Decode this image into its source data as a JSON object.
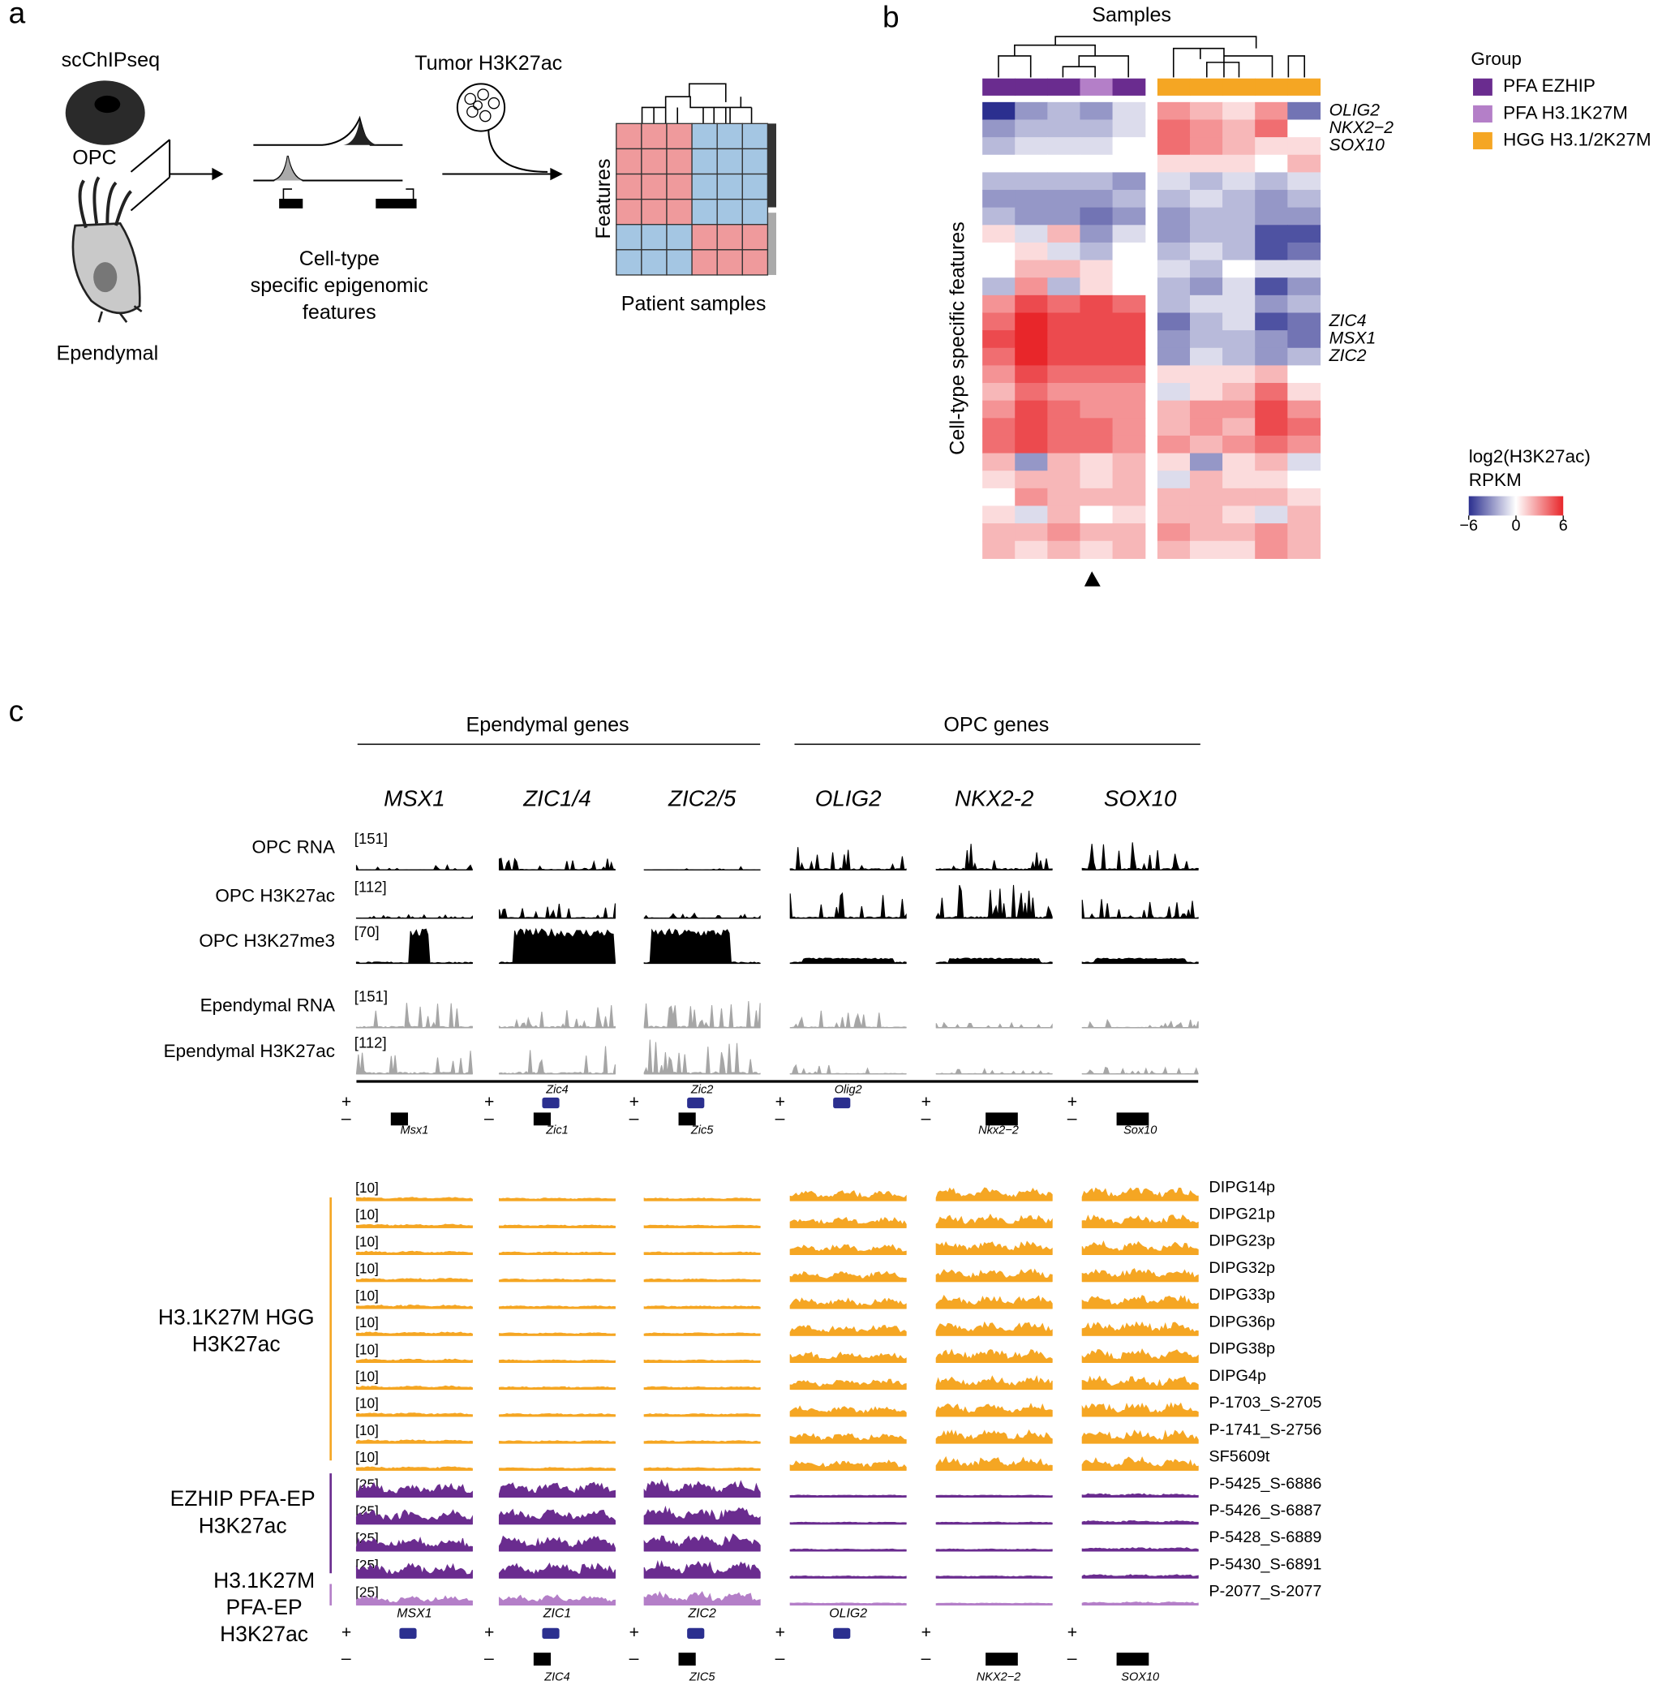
{
  "panel_a": {
    "label": "a",
    "method": "scChIPseq",
    "opc": "OPC",
    "ependymal": "Ependymal",
    "caption": [
      "Cell-type",
      "specific epigenomic",
      "features"
    ],
    "tumor": "Tumor H3K27ac",
    "features_axis": "Features",
    "samples_axis": "Patient samples"
  },
  "panel_b": {
    "label": "b",
    "title": "Samples",
    "y_label": "Cell-type specific features",
    "legend_title": "Group",
    "groups": [
      {
        "name": "PFA EZHIP",
        "color": "#6a2c8f"
      },
      {
        "name": "PFA H3.1K27M",
        "color": "#b47fc8"
      },
      {
        "name": "HGG H3.1/2K27M",
        "color": "#f5a623"
      }
    ],
    "column_groups": [
      "PFA EZHIP",
      "PFA EZHIP",
      "PFA EZHIP",
      "PFA H3.1K27M",
      "PFA EZHIP",
      "HGG H3.1/2K27M",
      "HGG H3.1/2K27M",
      "HGG H3.1/2K27M",
      "HGG H3.1/2K27M",
      "HGG H3.1/2K27M"
    ],
    "row_labels": [
      "OLIG2",
      "NKX2−2",
      "SOX10",
      null,
      null,
      null,
      null,
      null,
      null,
      null,
      null,
      null,
      "ZIC4",
      "MSX1",
      "ZIC2",
      null,
      null,
      null,
      null,
      null,
      null,
      null,
      null,
      null,
      null,
      null
    ],
    "values": [
      [
        -6,
        -3,
        -2,
        -3,
        -1,
        3,
        2,
        1,
        3,
        -4
      ],
      [
        -3,
        -2,
        -2,
        -2,
        -1,
        4,
        3,
        2,
        4,
        0
      ],
      [
        -2,
        -1,
        -1,
        -1,
        0,
        4,
        3,
        2,
        1,
        1
      ],
      [
        0,
        0,
        0,
        0,
        0,
        1,
        1,
        1,
        0,
        2
      ],
      [
        -2,
        -2,
        -2,
        -2,
        -3,
        -1,
        -2,
        -1,
        -2,
        -1
      ],
      [
        -3,
        -3,
        -3,
        -3,
        -2,
        -2,
        -1,
        -2,
        -3,
        -2
      ],
      [
        -2,
        -3,
        -3,
        -4,
        -3,
        -3,
        -2,
        -2,
        -3,
        -3
      ],
      [
        1,
        -1,
        2,
        -3,
        -1,
        -3,
        -2,
        -2,
        -5,
        -5
      ],
      [
        0,
        1,
        -1,
        -2,
        0,
        -2,
        -1,
        -2,
        -5,
        -4
      ],
      [
        0,
        2,
        2,
        1,
        0,
        -1,
        -2,
        0,
        -1,
        -1
      ],
      [
        -2,
        3,
        -2,
        1,
        0,
        -2,
        -3,
        -1,
        -5,
        -3
      ],
      [
        3,
        5,
        4,
        5,
        4,
        -2,
        -1,
        -1,
        -3,
        -2
      ],
      [
        4,
        6,
        5,
        5,
        5,
        -4,
        -2,
        -1,
        -5,
        -4
      ],
      [
        5,
        6,
        5,
        5,
        5,
        -3,
        -2,
        -2,
        -3,
        -4
      ],
      [
        4,
        6,
        5,
        5,
        5,
        -3,
        -1,
        -2,
        -3,
        -2
      ],
      [
        3,
        5,
        4,
        4,
        4,
        1,
        1,
        1,
        2,
        0
      ],
      [
        2,
        4,
        3,
        3,
        3,
        -1,
        1,
        2,
        4,
        1
      ],
      [
        3,
        5,
        4,
        3,
        3,
        2,
        3,
        3,
        5,
        3
      ],
      [
        4,
        5,
        4,
        4,
        3,
        2,
        3,
        2,
        5,
        4
      ],
      [
        4,
        5,
        4,
        4,
        3,
        3,
        2,
        3,
        4,
        3
      ],
      [
        2,
        -3,
        2,
        1,
        2,
        1,
        -3,
        1,
        2,
        -1
      ],
      [
        1,
        2,
        2,
        1,
        2,
        -1,
        2,
        1,
        1,
        0
      ],
      [
        0,
        3,
        2,
        2,
        2,
        2,
        2,
        2,
        2,
        1
      ],
      [
        1,
        -1,
        2,
        0,
        1,
        2,
        2,
        1,
        -1,
        2
      ],
      [
        2,
        2,
        3,
        2,
        2,
        3,
        2,
        2,
        3,
        2
      ],
      [
        2,
        1,
        2,
        1,
        2,
        2,
        1,
        1,
        3,
        2
      ]
    ],
    "colorbar": {
      "title": [
        "log2(H3K27ac)",
        "RPKM"
      ],
      "lim": [
        -6,
        6
      ],
      "ticks": [
        {
          "value": -6,
          "label": "−6"
        },
        0,
        6
      ],
      "colors": [
        "#2b2f8f",
        "#ffffff",
        "#e8262a"
      ]
    }
  },
  "panel_c": {
    "label": "c",
    "strand_plus": "+",
    "strand_minus": "–",
    "gene_groups": [
      {
        "name": "Ependymal genes",
        "genes": [
          "MSX1",
          "ZIC1/4",
          "ZIC2/5"
        ]
      },
      {
        "name": "OPC genes",
        "genes": [
          "OLIG2",
          "NKX2-2",
          "SOX10"
        ]
      }
    ],
    "reference_tracks": [
      {
        "name": "OPC RNA",
        "scale": "[151]",
        "color": "#000000"
      },
      {
        "name": "OPC H3K27ac",
        "scale": "[112]",
        "color": "#000000"
      },
      {
        "name": "OPC H3K27me3",
        "scale": "[70]",
        "color": "#000000"
      },
      {
        "name": "Ependymal RNA",
        "scale": "[151]",
        "color": "#a6a6a6"
      },
      {
        "name": "Ependymal H3K27ac",
        "scale": "[112]",
        "color": "#a6a6a6"
      }
    ],
    "reference_annotation": [
      {
        "plus": null,
        "minus": "Msx1"
      },
      {
        "plus": "Zic4",
        "minus": "Zic1"
      },
      {
        "plus": "Zic2",
        "minus": "Zic5"
      },
      {
        "plus": "Olig2",
        "minus": null
      },
      {
        "plus": null,
        "minus": "Nkx2−2"
      },
      {
        "plus": null,
        "minus": "Sox10"
      }
    ],
    "sample_groups": [
      {
        "label": [
          "H3.1K27M HGG",
          "H3K27ac"
        ],
        "color": "#f5a623",
        "samples": [
          {
            "name": "DIPG14p",
            "scale": "[10]"
          },
          {
            "name": "DIPG21p",
            "scale": "[10]"
          },
          {
            "name": "DIPG23p",
            "scale": "[10]"
          },
          {
            "name": "DIPG32p",
            "scale": "[10]"
          },
          {
            "name": "DIPG33p",
            "scale": "[10]"
          },
          {
            "name": "DIPG36p",
            "scale": "[10]"
          },
          {
            "name": "DIPG38p",
            "scale": "[10]"
          },
          {
            "name": "DIPG4p",
            "scale": "[10]"
          },
          {
            "name": "P-1703_S-2705",
            "scale": "[10]"
          },
          {
            "name": "P-1741_S-2756",
            "scale": "[10]"
          },
          {
            "name": "SF5609t",
            "scale": "[10]"
          }
        ]
      },
      {
        "label": [
          "EZHIP PFA-EP",
          "H3K27ac"
        ],
        "color": "#6a2c8f",
        "samples": [
          {
            "name": "P-5425_S-6886",
            "scale": "[25]"
          },
          {
            "name": "P-5426_S-6887",
            "scale": "[25]"
          },
          {
            "name": "P-5428_S-6889",
            "scale": "[25]"
          },
          {
            "name": "P-5430_S-6891",
            "scale": "[25]"
          }
        ]
      },
      {
        "label": [
          "H3.1K27M",
          "PFA-EP",
          "H3K27ac"
        ],
        "color": "#b47fc8",
        "samples": [
          {
            "name": "P-2077_S-2077",
            "scale": "[25]"
          }
        ]
      }
    ],
    "tumor_annotation": [
      {
        "plus": "MSX1",
        "minus": null
      },
      {
        "plus": "ZIC1",
        "minus": "ZIC4"
      },
      {
        "plus": "ZIC2",
        "minus": "ZIC5"
      },
      {
        "plus": "OLIG2",
        "minus": null
      },
      {
        "plus": null,
        "minus": "NKX2−2"
      },
      {
        "plus": null,
        "minus": "SOX10"
      }
    ]
  }
}
